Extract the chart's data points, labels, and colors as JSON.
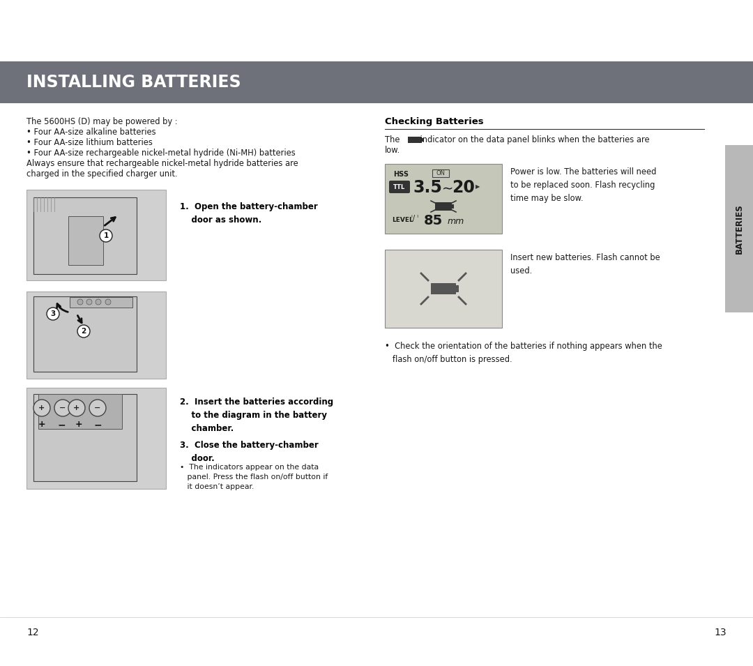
{
  "bg_color": "#ffffff",
  "header_bg": "#6e717a",
  "header_text": "INSTALLING BATTERIES",
  "header_text_color": "#ffffff",
  "tab_bg": "#b8b8b8",
  "tab_text": "BATTERIES",
  "tab_text_color": "#1a1a1a",
  "page_left": "12",
  "page_right": "13",
  "left_intro_line1": "The 5600HS (D) may be powered by :",
  "left_intro_line2": "• Four AA-size alkaline batteries",
  "left_intro_line3": "• Four AA-size lithium batteries",
  "left_intro_line4": "• Four AA-size rechargeable nickel-metal hydride (Ni-MH) batteries",
  "left_intro_line5": "Always ensure that rechargeable nickel-metal hydride batteries are",
  "left_intro_line6": "charged in the specified charger unit.",
  "step1_text": "1.  Open the battery-chamber\n    door as shown.",
  "step2_text": "2.  Insert the batteries according\n    to the diagram in the battery\n    chamber.",
  "step3_text": "3.  Close the battery-chamber\n    door.",
  "step3_sub": "•  The indicators appear on the data\n   panel. Press the flash on/off button if\n   it doesn’t appear.",
  "checking_title": "Checking Batteries",
  "checking_intro1": "The        indicator on the data panel blinks when the batteries are",
  "checking_intro2": "low.",
  "checking_note1": "Power is low. The batteries will need\nto be replaced soon. Flash recycling\ntime may be slow.",
  "checking_note2": "Insert new batteries. Flash cannot be\nused.",
  "checking_bullet": "•  Check the orientation of the batteries if nothing appears when the\n   flash on/off button is pressed.",
  "divider_color": "#cccccc",
  "text_color": "#1a1a1a",
  "bold_color": "#000000",
  "img_border": "#aaaaaa",
  "img_fill": "#d0d0d0",
  "img_dark": "#555555",
  "img_light": "#e8e8e8"
}
